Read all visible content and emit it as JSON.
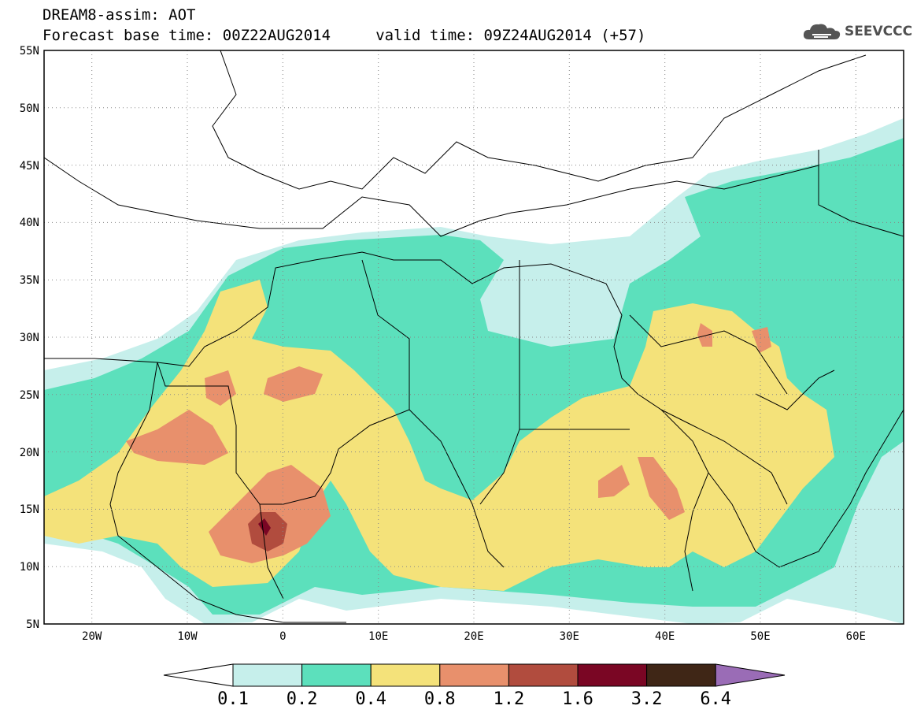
{
  "header": {
    "title_line1": "DREAM8-assim: AOT",
    "title_line2": "Forecast base time: 00Z22AUG2014     valid time: 09Z24AUG2014 (+57)"
  },
  "logo": {
    "text": "SEEVCCC",
    "icon": "cloud-icon"
  },
  "map": {
    "lat_labels": [
      {
        "lat": 55,
        "label": "55N"
      },
      {
        "lat": 50,
        "label": "50N"
      },
      {
        "lat": 45,
        "label": "45N"
      },
      {
        "lat": 40,
        "label": "40N"
      },
      {
        "lat": 35,
        "label": "35N"
      },
      {
        "lat": 30,
        "label": "30N"
      },
      {
        "lat": 25,
        "label": "25N"
      },
      {
        "lat": 20,
        "label": "20N"
      },
      {
        "lat": 15,
        "label": "15N"
      },
      {
        "lat": 10,
        "label": "10N"
      },
      {
        "lat": 5,
        "label": "5N"
      }
    ],
    "lon_labels": [
      {
        "lon": -20,
        "label": "20W"
      },
      {
        "lon": -10,
        "label": "10W"
      },
      {
        "lon": 0,
        "label": "0"
      },
      {
        "lon": 10,
        "label": "10E"
      },
      {
        "lon": 20,
        "label": "20E"
      },
      {
        "lon": 30,
        "label": "30E"
      },
      {
        "lon": 40,
        "label": "40E"
      },
      {
        "lon": 50,
        "label": "50E"
      },
      {
        "lon": 60,
        "label": "60E"
      }
    ],
    "lon_range": [
      -25,
      65
    ],
    "lat_range": [
      5,
      55
    ],
    "grid": "dotted",
    "background": "#ffffff"
  },
  "colorbar": {
    "labels": [
      "0.1",
      "0.2",
      "0.4",
      "0.8",
      "1.2",
      "1.6",
      "3.2",
      "6.4"
    ],
    "colors": [
      "#c6efeb",
      "#5ce0bc",
      "#f4e27a",
      "#e8906c",
      "#b14c3e",
      "#7a0624",
      "#3f2616"
    ],
    "under_color": "#ffffff",
    "over_color": "#9a6cb6"
  }
}
